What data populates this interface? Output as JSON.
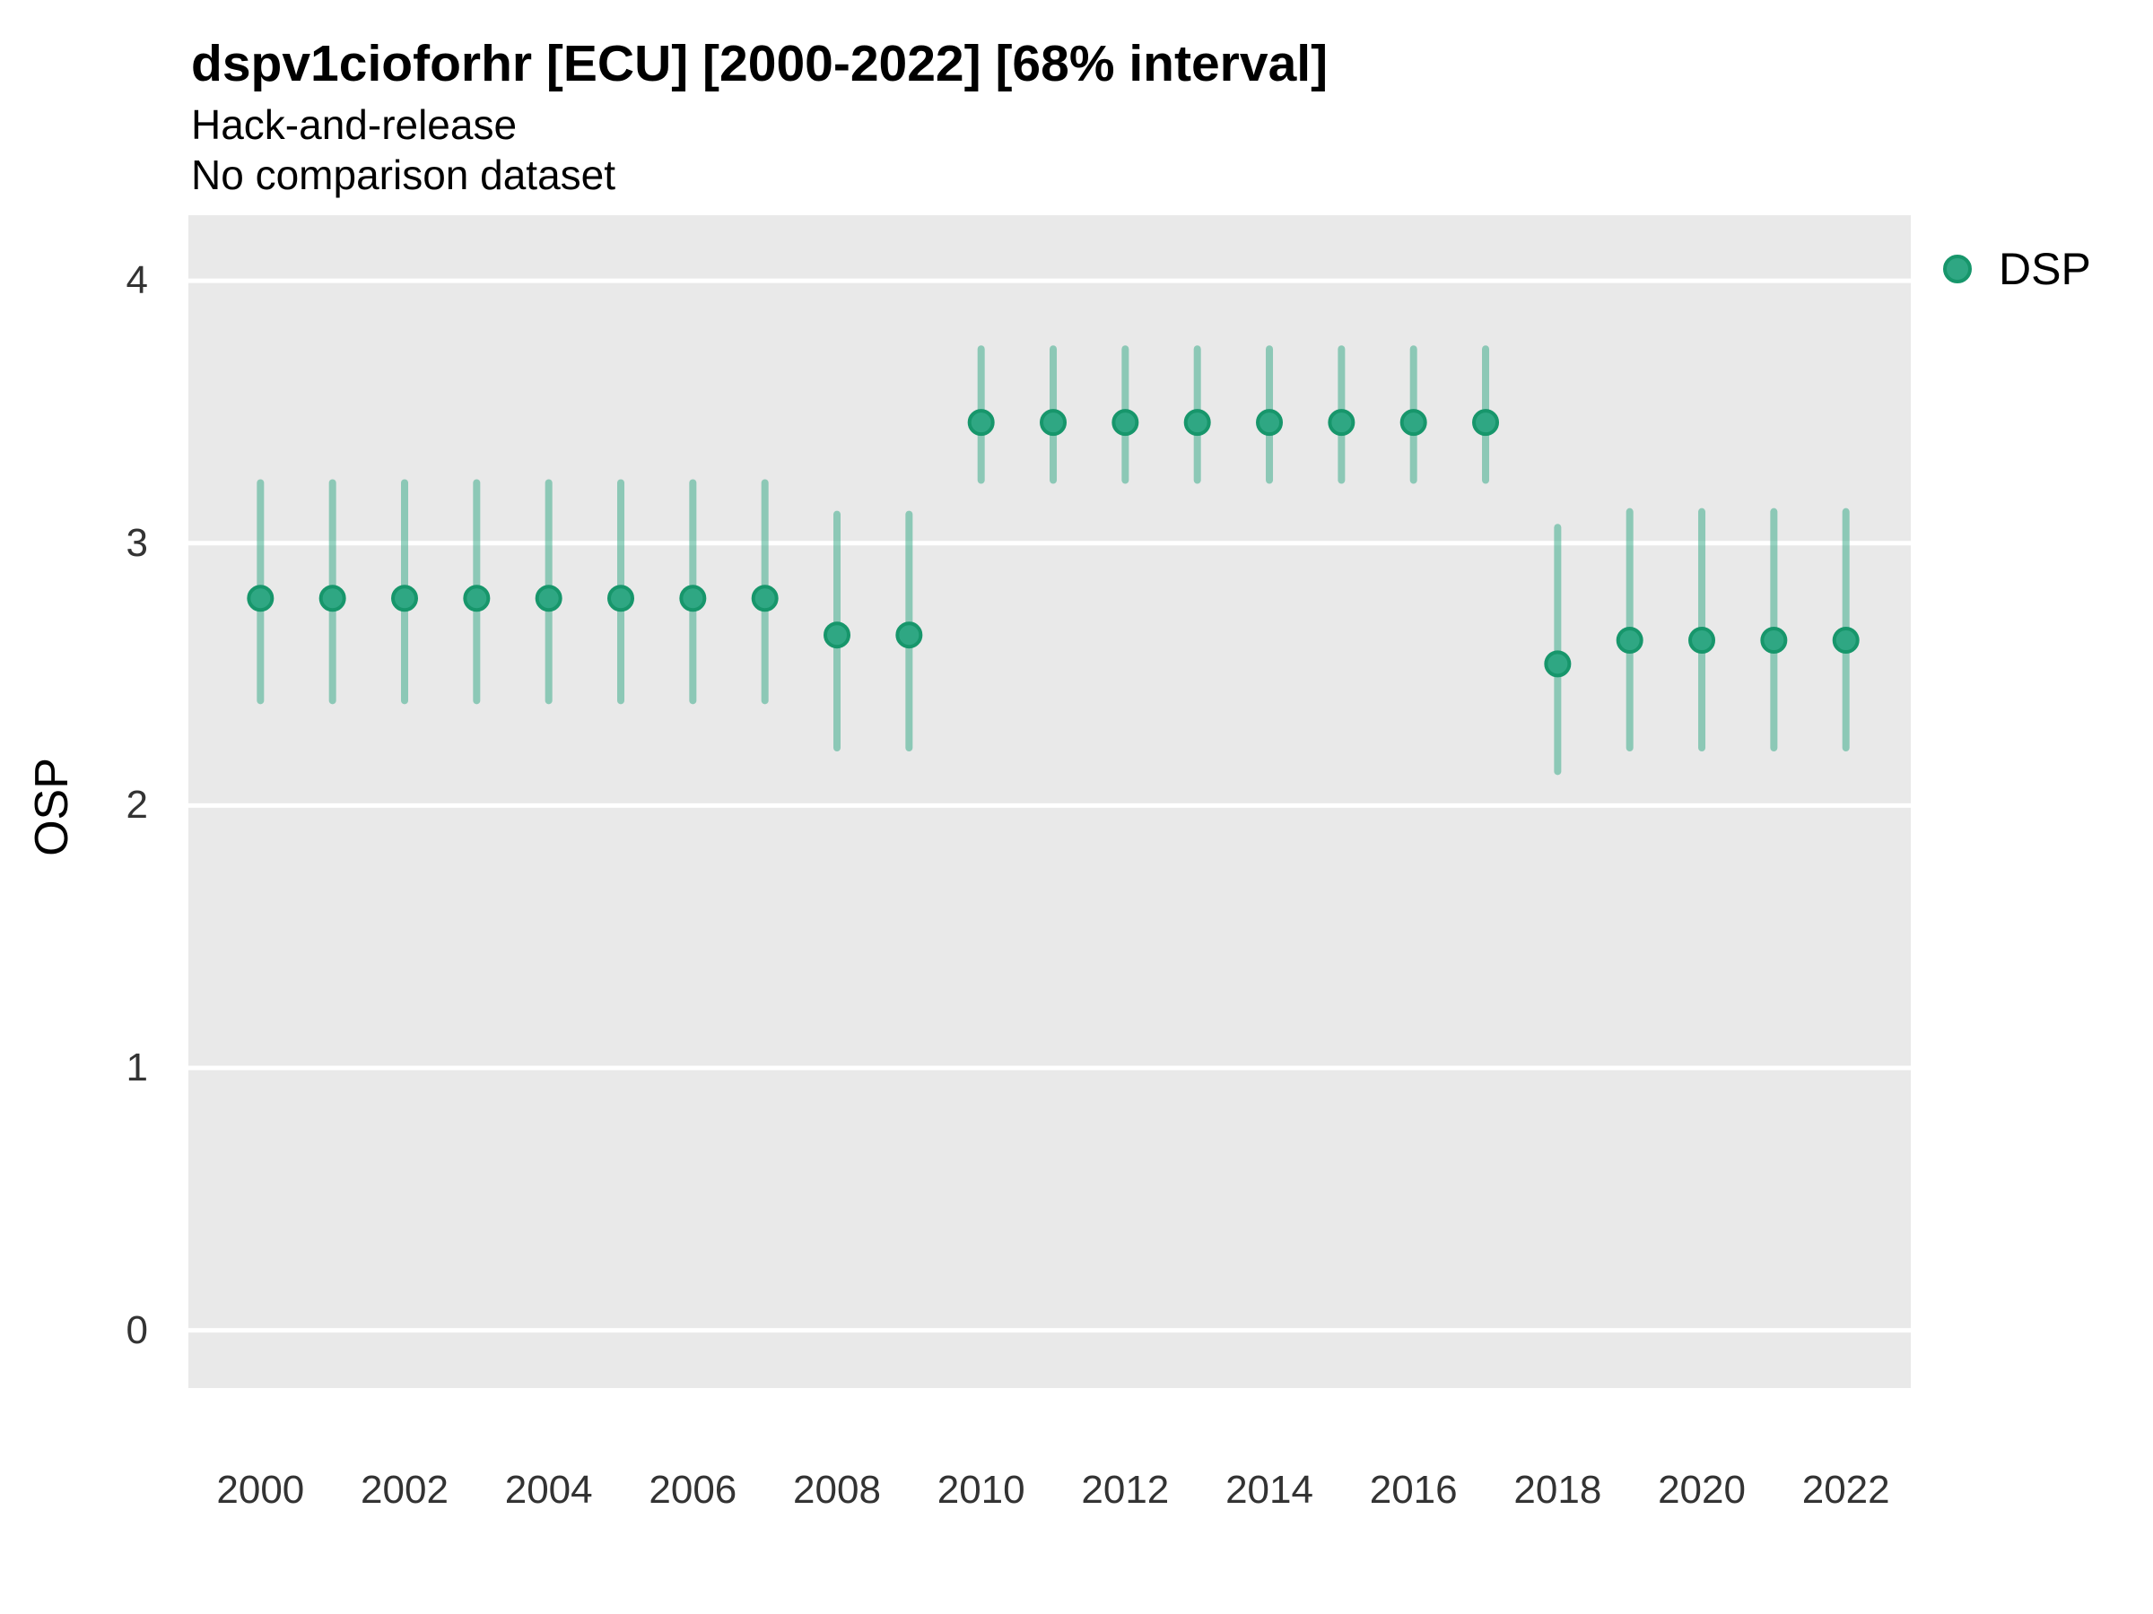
{
  "header": {
    "title": "dspv1cioforhr [ECU] [2000-2022] [68% interval]",
    "subtitle": "Hack-and-release",
    "note": "No comparison dataset"
  },
  "legend": {
    "label": "DSP",
    "swatch_icon": "circle-point-icon"
  },
  "colors": {
    "point_fill": "#2fa783",
    "point_stroke": "#17966b",
    "interval_bar": "rgba(47,167,131,0.5)",
    "panel_background": "#e9e9e9",
    "gridline": "#ffffff",
    "page_background": "#ffffff",
    "text": "#000000",
    "tick_text": "#333333"
  },
  "chart_data": {
    "type": "pointrange",
    "title": "dspv1cioforhr [ECU] [2000-2022] [68% interval]",
    "subtitle": "Hack-and-release",
    "note": "No comparison dataset",
    "xlabel": "",
    "ylabel": "OSP",
    "interval": "68% interval",
    "legend_position": "right-top-outside",
    "grid": {
      "major_y": true,
      "minor": false,
      "color": "#ffffff"
    },
    "panel_bg": "#e9e9e9",
    "x": [
      2000,
      2001,
      2002,
      2003,
      2004,
      2005,
      2006,
      2007,
      2008,
      2009,
      2010,
      2011,
      2012,
      2013,
      2014,
      2015,
      2016,
      2017,
      2018,
      2019,
      2020,
      2021,
      2022
    ],
    "series": [
      {
        "name": "DSP",
        "values": [
          2.79,
          2.79,
          2.79,
          2.79,
          2.79,
          2.79,
          2.79,
          2.79,
          2.65,
          2.65,
          3.46,
          3.46,
          3.46,
          3.46,
          3.46,
          3.46,
          3.46,
          3.46,
          2.54,
          2.63,
          2.63,
          2.63,
          2.63
        ],
        "lower": [
          2.4,
          2.4,
          2.4,
          2.4,
          2.4,
          2.4,
          2.4,
          2.4,
          2.22,
          2.22,
          3.24,
          3.24,
          3.24,
          3.24,
          3.24,
          3.24,
          3.24,
          3.24,
          2.13,
          2.22,
          2.22,
          2.22,
          2.22
        ],
        "upper": [
          3.23,
          3.23,
          3.23,
          3.23,
          3.23,
          3.23,
          3.23,
          3.23,
          3.11,
          3.11,
          3.74,
          3.74,
          3.74,
          3.74,
          3.74,
          3.74,
          3.74,
          3.74,
          3.06,
          3.12,
          3.12,
          3.12,
          3.12
        ]
      }
    ],
    "x_ticks": [
      2000,
      2002,
      2004,
      2006,
      2008,
      2010,
      2012,
      2014,
      2016,
      2018,
      2020,
      2022
    ],
    "y_ticks": [
      0,
      1,
      2,
      3,
      4
    ],
    "xlim": [
      1999.0,
      2022.9
    ],
    "ylim": [
      -0.22,
      4.25
    ]
  }
}
